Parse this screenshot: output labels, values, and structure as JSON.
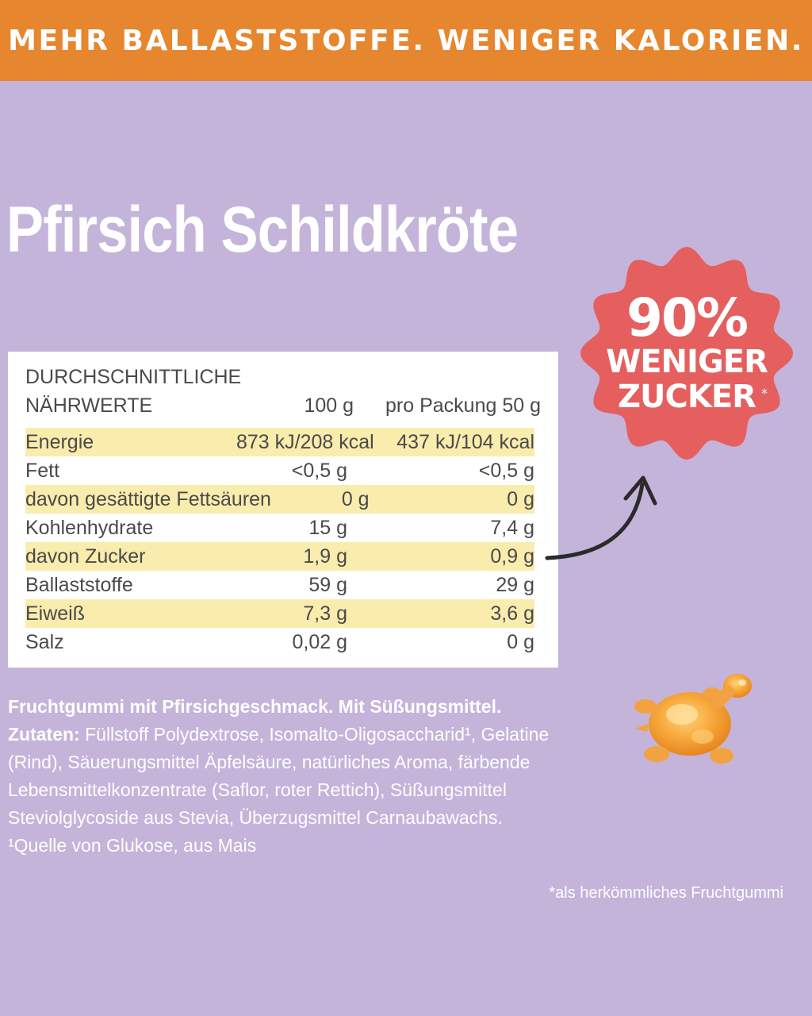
{
  "banner": {
    "text": "MEHR BALLASTSTOFFE. WENIGER KALORIEN."
  },
  "product": {
    "title": "Pfirsich Schildkröte"
  },
  "nutrition": {
    "header_line1": "DURCHSCHNITTLICHE",
    "header_line2": "NÄHRWERTE",
    "col_100g": "100 g",
    "col_pack": "pro Packung 50 g",
    "rows": [
      {
        "label": "Energie",
        "per100": "873 kJ/208 kcal",
        "perPack": "437 kJ/104 kcal",
        "highlight": true
      },
      {
        "label": "Fett",
        "per100": "<0,5 g",
        "perPack": "<0,5 g",
        "highlight": false
      },
      {
        "label": "davon gesättigte Fettsäuren",
        "per100": "0 g",
        "perPack": "0 g",
        "highlight": true
      },
      {
        "label": "Kohlenhydrate",
        "per100": "15 g",
        "perPack": "7,4 g",
        "highlight": false
      },
      {
        "label": "davon Zucker",
        "per100": "1,9 g",
        "perPack": "0,9 g",
        "highlight": true
      },
      {
        "label": "Ballaststoffe",
        "per100": "59 g",
        "perPack": "29 g",
        "highlight": false
      },
      {
        "label": "Eiweiß",
        "per100": "7,3 g",
        "perPack": "3,6 g",
        "highlight": true
      },
      {
        "label": "Salz",
        "per100": "0,02 g",
        "perPack": "0 g",
        "highlight": false
      }
    ]
  },
  "badge": {
    "percent": "90%",
    "line1": "WENIGER",
    "line2": "ZUCKER",
    "asterisk": "*",
    "color": "#e55f5f"
  },
  "ingredients": {
    "line1": "Fruchtgummi mit Pfirsichgeschmack. Mit Süßungsmittel.",
    "label": "Zutaten:",
    "text": " Füllstoff Polydextrose, Isomalto-Oligosaccharid¹, Gelatine (Rind), Säuerungsmittel Äpfelsäure, natürliches Aroma, färbende Lebensmittelkonzentrate (Saflor, roter Rettich), Süßungsmittel Steviolglycoside aus Stevia, Überzugsmittel Carnaubawachs.",
    "footnote1": "¹Quelle von Glukose, aus Mais"
  },
  "footnote": "*als herkömmliches Fruchtgummi",
  "colors": {
    "background": "#c4b4da",
    "banner": "#e6862e",
    "row_highlight": "#f9ecad",
    "text_dark": "#4a4a4a"
  },
  "icons": {
    "arrow": "curved-arrow-icon",
    "candy": "turtle-gummy-icon"
  }
}
